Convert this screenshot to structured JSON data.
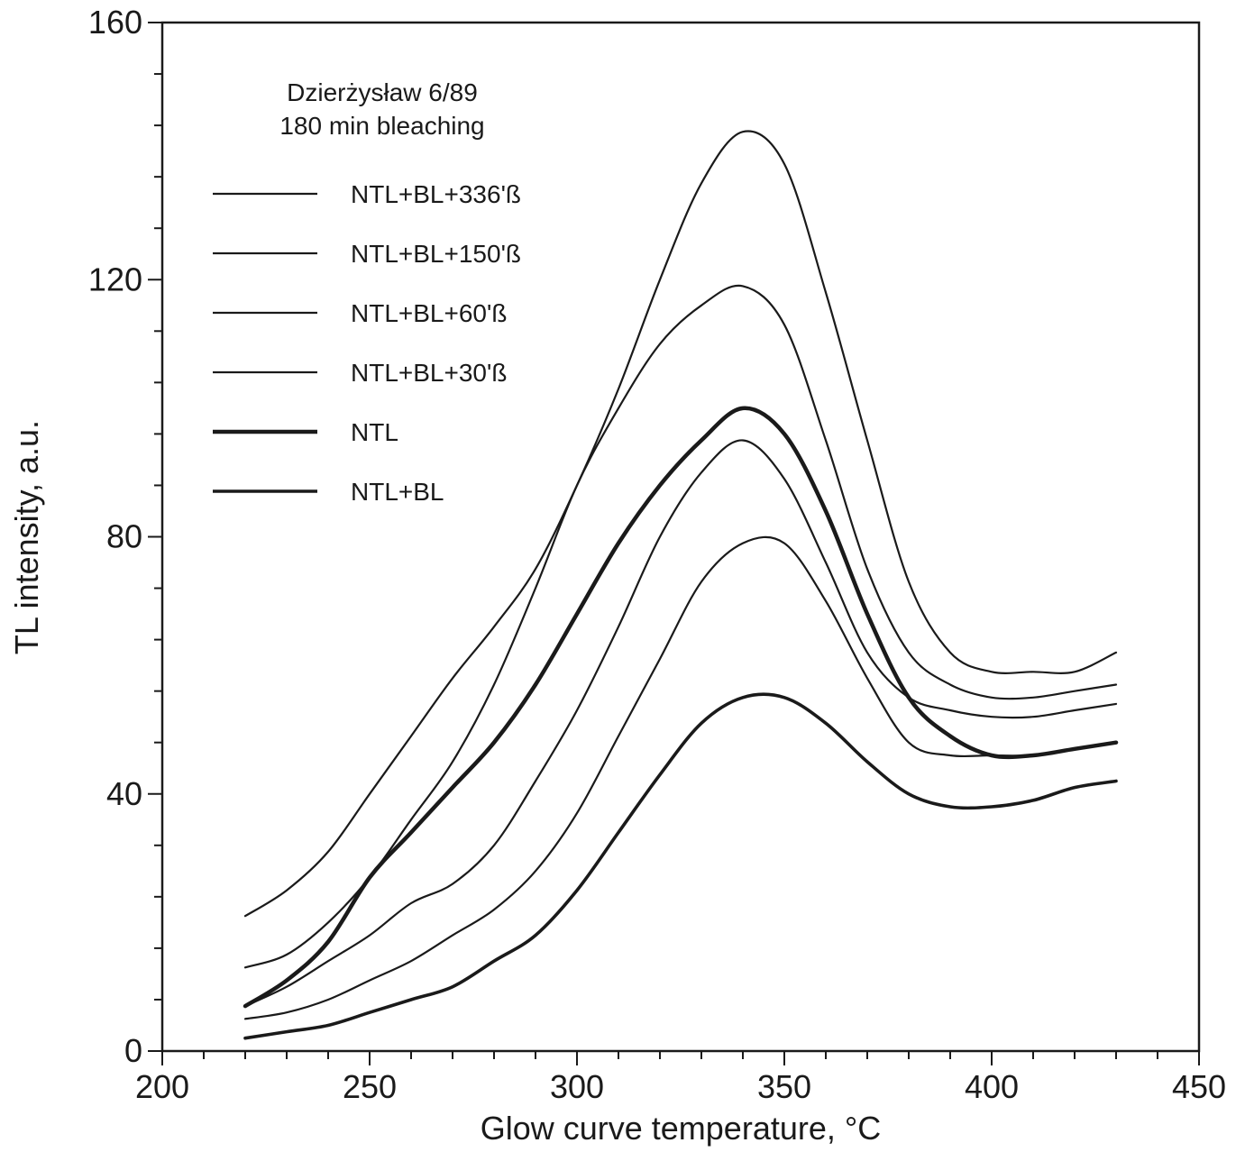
{
  "chart_data": {
    "type": "line",
    "xlabel": "Glow curve temperature, °C",
    "ylabel": "TL intensity, a.u.",
    "xlim": [
      200,
      450
    ],
    "ylim": [
      0,
      160
    ],
    "x_ticks": [
      "200",
      "250",
      "300",
      "350",
      "400",
      "450"
    ],
    "y_ticks": [
      "0",
      "40",
      "80",
      "120",
      "160"
    ],
    "grid": false,
    "legend_position": "top-left",
    "annotation": {
      "line1": "Dzierżysław 6/89",
      "line2": "180 min bleaching"
    },
    "x": [
      220,
      230,
      240,
      250,
      260,
      270,
      280,
      290,
      300,
      310,
      320,
      330,
      340,
      350,
      360,
      370,
      380,
      390,
      400,
      410,
      420,
      430
    ],
    "series": [
      {
        "name": "NTL+BL+336'ß",
        "style": "thin",
        "values": [
          21,
          25,
          31,
          40,
          49,
          58,
          66,
          75,
          88,
          103,
          120,
          135,
          143,
          138,
          118,
          95,
          73,
          62,
          59,
          59,
          59,
          62
        ]
      },
      {
        "name": "NTL+BL+150'ß",
        "style": "thin",
        "values": [
          13,
          15,
          20,
          27,
          36,
          45,
          57,
          72,
          88,
          100,
          110,
          116,
          119,
          113,
          95,
          75,
          62,
          57,
          55,
          55,
          56,
          57
        ]
      },
      {
        "name": "NTL+BL+60'ß",
        "style": "thin",
        "values": [
          7,
          10,
          14,
          18,
          23,
          26,
          32,
          42,
          53,
          66,
          80,
          90,
          95,
          89,
          76,
          62,
          55,
          53,
          52,
          52,
          53,
          54
        ]
      },
      {
        "name": "NTL+BL+30'ß",
        "style": "thin",
        "values": [
          5,
          6,
          8,
          11,
          14,
          18,
          22,
          28,
          37,
          49,
          61,
          73,
          79,
          79,
          70,
          58,
          48,
          46,
          46,
          46,
          47,
          48
        ]
      },
      {
        "name": "NTL",
        "style": "thick",
        "values": [
          7,
          11,
          17,
          27,
          34,
          41,
          48,
          57,
          68,
          79,
          88,
          95,
          100,
          96,
          84,
          68,
          55,
          49,
          46,
          46,
          47,
          48
        ]
      },
      {
        "name": "NTL+BL",
        "style": "medium",
        "values": [
          2,
          3,
          4,
          6,
          8,
          10,
          14,
          18,
          25,
          34,
          43,
          51,
          55,
          55,
          51,
          45,
          40,
          38,
          38,
          39,
          41,
          42
        ]
      }
    ]
  }
}
